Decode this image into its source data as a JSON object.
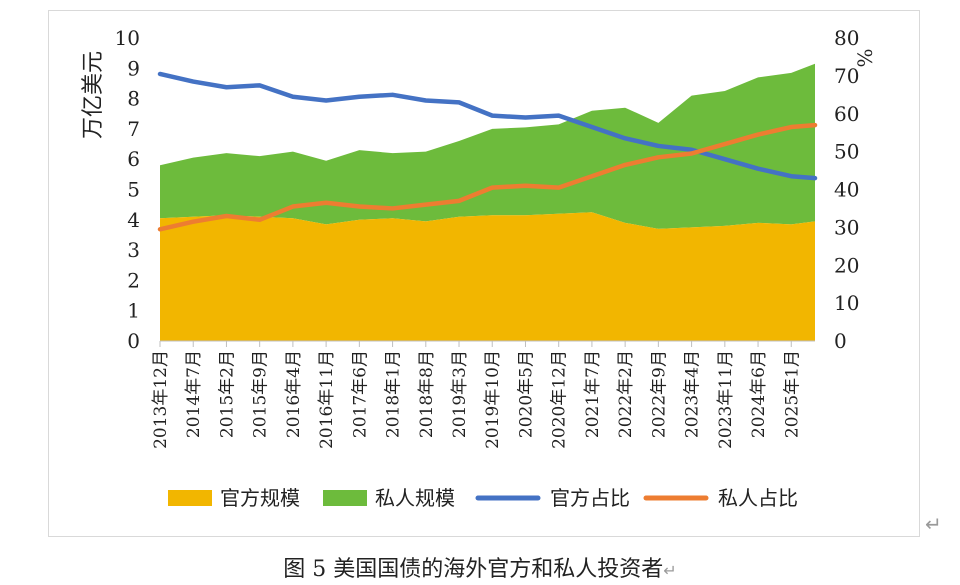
{
  "colors": {
    "official_scale": "#F2B600",
    "private_scale": "#6DBB3C",
    "official_share": "#4472C4",
    "private_share": "#ED7D31"
  },
  "chart_data": {
    "type": "area",
    "title": "",
    "ylabel": "万亿美元",
    "y2label": "%",
    "ylim": [
      0,
      10
    ],
    "y2lim": [
      0,
      80
    ],
    "yticks": [
      "0",
      "1",
      "2",
      "3",
      "4",
      "5",
      "6",
      "7",
      "8",
      "9",
      "10"
    ],
    "y2ticks": [
      "0",
      "10",
      "20",
      "30",
      "40",
      "50",
      "60",
      "70",
      "80"
    ],
    "xticks": [
      "2013年12月",
      "2014年7月",
      "2015年2月",
      "2015年9月",
      "2016年4月",
      "2016年11月",
      "2017年6月",
      "2018年1月",
      "2018年8月",
      "2019年3月",
      "2019年10月",
      "2020年5月",
      "2020年12月",
      "2021年7月",
      "2022年2月",
      "2022年9月",
      "2023年4月",
      "2023年11月",
      "2024年6月",
      "2025年1月"
    ],
    "x_range": [
      "2013-12",
      "2025-06"
    ],
    "grid": false,
    "legend_position": "bottom",
    "series": [
      {
        "name": "官方规模",
        "type": "area",
        "axis": "left",
        "x": [
          "2013-12",
          "2014-07",
          "2015-02",
          "2015-09",
          "2016-04",
          "2016-11",
          "2017-06",
          "2018-01",
          "2018-08",
          "2019-03",
          "2019-10",
          "2020-05",
          "2020-12",
          "2021-07",
          "2022-02",
          "2022-09",
          "2023-04",
          "2023-11",
          "2024-06",
          "2025-01",
          "2025-06"
        ],
        "values": [
          4.05,
          4.1,
          4.15,
          4.1,
          4.05,
          3.85,
          4.0,
          4.05,
          3.95,
          4.1,
          4.15,
          4.15,
          4.2,
          4.25,
          3.9,
          3.7,
          3.75,
          3.8,
          3.9,
          3.85,
          3.95
        ]
      },
      {
        "name": "私人规模",
        "type": "area",
        "axis": "left",
        "stacked_on": "官方规模",
        "x": [
          "2013-12",
          "2014-07",
          "2015-02",
          "2015-09",
          "2016-04",
          "2016-11",
          "2017-06",
          "2018-01",
          "2018-08",
          "2019-03",
          "2019-10",
          "2020-05",
          "2020-12",
          "2021-07",
          "2022-02",
          "2022-09",
          "2023-04",
          "2023-11",
          "2024-06",
          "2025-01",
          "2025-06"
        ],
        "values": [
          1.75,
          1.95,
          2.05,
          2.0,
          2.2,
          2.1,
          2.3,
          2.15,
          2.3,
          2.5,
          2.85,
          2.9,
          2.95,
          3.35,
          3.8,
          3.5,
          4.35,
          4.45,
          4.8,
          5.0,
          5.2
        ]
      },
      {
        "name": "官方占比",
        "type": "line",
        "axis": "right",
        "x": [
          "2013-12",
          "2014-07",
          "2015-02",
          "2015-09",
          "2016-04",
          "2016-11",
          "2017-06",
          "2018-01",
          "2018-08",
          "2019-03",
          "2019-10",
          "2020-05",
          "2020-12",
          "2021-07",
          "2022-02",
          "2022-09",
          "2023-04",
          "2023-11",
          "2024-06",
          "2025-01",
          "2025-06"
        ],
        "values": [
          70.5,
          68.5,
          67.0,
          67.5,
          64.5,
          63.5,
          64.5,
          65.0,
          63.5,
          63.0,
          59.5,
          59.0,
          59.5,
          56.5,
          53.5,
          51.5,
          50.5,
          48.0,
          45.5,
          43.5,
          43.0
        ]
      },
      {
        "name": "私人占比",
        "type": "line",
        "axis": "right",
        "x": [
          "2013-12",
          "2014-07",
          "2015-02",
          "2015-09",
          "2016-04",
          "2016-11",
          "2017-06",
          "2018-01",
          "2018-08",
          "2019-03",
          "2019-10",
          "2020-05",
          "2020-12",
          "2021-07",
          "2022-02",
          "2022-09",
          "2023-04",
          "2023-11",
          "2024-06",
          "2025-01",
          "2025-06"
        ],
        "values": [
          29.5,
          31.5,
          33.0,
          32.0,
          35.5,
          36.5,
          35.5,
          35.0,
          36.0,
          37.0,
          40.5,
          41.0,
          40.5,
          43.5,
          46.5,
          48.5,
          49.5,
          52.0,
          54.5,
          56.5,
          57.0
        ]
      }
    ]
  },
  "caption": "图 5  美国国债的海外官方和私人投资者"
}
